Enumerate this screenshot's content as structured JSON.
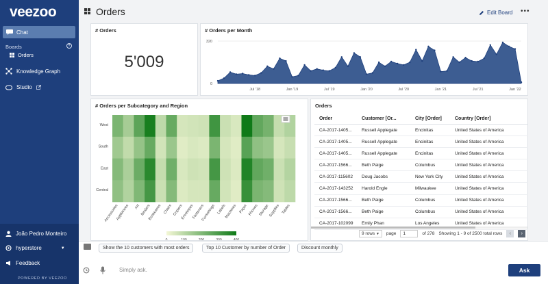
{
  "sidebar": {
    "logo": "veezoo",
    "chat_label": "Chat",
    "boards_label": "Boards",
    "boards_add": "+",
    "board_item": "Orders",
    "knowledge_graph_label": "Knowledge Graph",
    "studio_label": "Studio",
    "user_name": "João Pedro Monteiro",
    "store_name": "hyperstore",
    "feedback_label": "Feedback",
    "powered_by": "POWERED BY VEEZOO"
  },
  "header": {
    "title": "Orders",
    "edit_board_label": "Edit Board",
    "more_icon": "•••"
  },
  "kpi": {
    "title": "# Orders",
    "value": "5'009"
  },
  "line_chart": {
    "title": "# Orders per Month"
  },
  "heatmap": {
    "title": "# Orders per Subcategory and Region"
  },
  "orders_table": {
    "title": "Orders",
    "columns": [
      "Order",
      "Customer [Or...",
      "City [Order]",
      "Country [Order]"
    ],
    "rows": [
      [
        "CA-2017-1405...",
        "Russell Applegate",
        "Encinitas",
        "United States of America"
      ],
      [
        "CA-2017-1405...",
        "Russell Applegate",
        "Encinitas",
        "United States of America"
      ],
      [
        "CA-2017-1405...",
        "Russell Applegate",
        "Encinitas",
        "United States of America"
      ],
      [
        "CA-2017-1566...",
        "Beth Paige",
        "Columbus",
        "United States of America"
      ],
      [
        "CA-2017-115602",
        "Doug Jacobs",
        "New York City",
        "United States of America"
      ],
      [
        "CA-2017-143252",
        "Harold Engle",
        "Milwaukee",
        "United States of America"
      ],
      [
        "CA-2017-1566...",
        "Beth Paige",
        "Columbus",
        "United States of America"
      ],
      [
        "CA-2017-1566...",
        "Beth Paige",
        "Columbus",
        "United States of America"
      ],
      [
        "CA-2017-102099",
        "Emily Phan",
        "Los Angeles",
        "United States of America"
      ]
    ],
    "rows_select": "9 rows",
    "page_label": "page",
    "page_value": "1",
    "page_total": "of 278",
    "summary": "Showing 1 - 9 of 2500 total rows"
  },
  "suggestions": [
    "Show the 10 customers with most orders",
    "Top 10 Customer by number of Order",
    "Discount monthly"
  ],
  "ask": {
    "placeholder": "Simply ask.",
    "button": "Ask"
  },
  "colors": {
    "brand": "#1e3f7c",
    "area_fill": "#3d5d92",
    "heat_low": "#f4f7d6",
    "heat_high": "#0f7a18"
  },
  "chart_data": [
    {
      "type": "area",
      "title": "# Orders per Month",
      "ylim": [
        0,
        320
      ],
      "yticks": [
        0,
        320
      ],
      "xticks": [
        "Jul '18",
        "Jan '19",
        "Jul '19",
        "Jan '20",
        "Jul '20",
        "Jan '21",
        "Jul '21",
        "Jan '22"
      ],
      "x": [
        "Jan '18",
        "Feb '18",
        "Mar '18",
        "Apr '18",
        "May '18",
        "Jun '18",
        "Jul '18",
        "Aug '18",
        "Sep '18",
        "Oct '18",
        "Nov '18",
        "Dec '18",
        "Jan '19",
        "Feb '19",
        "Mar '19",
        "Apr '19",
        "May '19",
        "Jun '19",
        "Jul '19",
        "Aug '19",
        "Sep '19",
        "Oct '19",
        "Nov '19",
        "Dec '19",
        "Jan '20",
        "Feb '20",
        "Mar '20",
        "Apr '20",
        "May '20",
        "Jun '20",
        "Jul '20",
        "Aug '20",
        "Sep '20",
        "Oct '20",
        "Nov '20",
        "Dec '20",
        "Jan '21",
        "Feb '21",
        "Mar '21",
        "Apr '21",
        "May '21",
        "Jun '21",
        "Jul '21",
        "Aug '21",
        "Sep '21",
        "Oct '21",
        "Nov '21",
        "Dec '21",
        "Jan '22",
        "Feb '22"
      ],
      "values": [
        20,
        40,
        85,
        70,
        75,
        65,
        60,
        80,
        130,
        110,
        190,
        170,
        50,
        60,
        140,
        95,
        110,
        100,
        95,
        120,
        200,
        130,
        230,
        200,
        70,
        80,
        160,
        130,
        165,
        150,
        140,
        160,
        255,
        170,
        280,
        250,
        90,
        95,
        200,
        160,
        195,
        170,
        165,
        190,
        290,
        220,
        310,
        280,
        260,
        10
      ]
    },
    {
      "type": "heatmap",
      "title": "# Orders per Subcategory and Region",
      "x": [
        "Accessories",
        "Appliances",
        "Art",
        "Binders",
        "Bookcases",
        "Chairs",
        "Copiers",
        "Envelopes",
        "Fasteners",
        "Furnishings",
        "Labels",
        "Machines",
        "Paper",
        "Phones",
        "Storage",
        "Supplies",
        "Tables"
      ],
      "y": [
        "West",
        "South",
        "East",
        "Central"
      ],
      "values": [
        [
          190,
          110,
          250,
          400,
          70,
          230,
          35,
          40,
          45,
          310,
          50,
          30,
          420,
          240,
          200,
          60,
          90
        ],
        [
          120,
          65,
          140,
          230,
          40,
          130,
          20,
          30,
          25,
          190,
          35,
          20,
          260,
          150,
          130,
          35,
          55
        ],
        [
          170,
          100,
          220,
          360,
          60,
          210,
          30,
          45,
          40,
          300,
          45,
          25,
          380,
          240,
          210,
          50,
          85
        ],
        [
          150,
          90,
          180,
          300,
          50,
          170,
          25,
          35,
          35,
          230,
          40,
          20,
          330,
          190,
          170,
          45,
          70
        ]
      ],
      "colorbar_ticks": [
        0,
        100,
        200,
        300,
        400
      ]
    }
  ]
}
